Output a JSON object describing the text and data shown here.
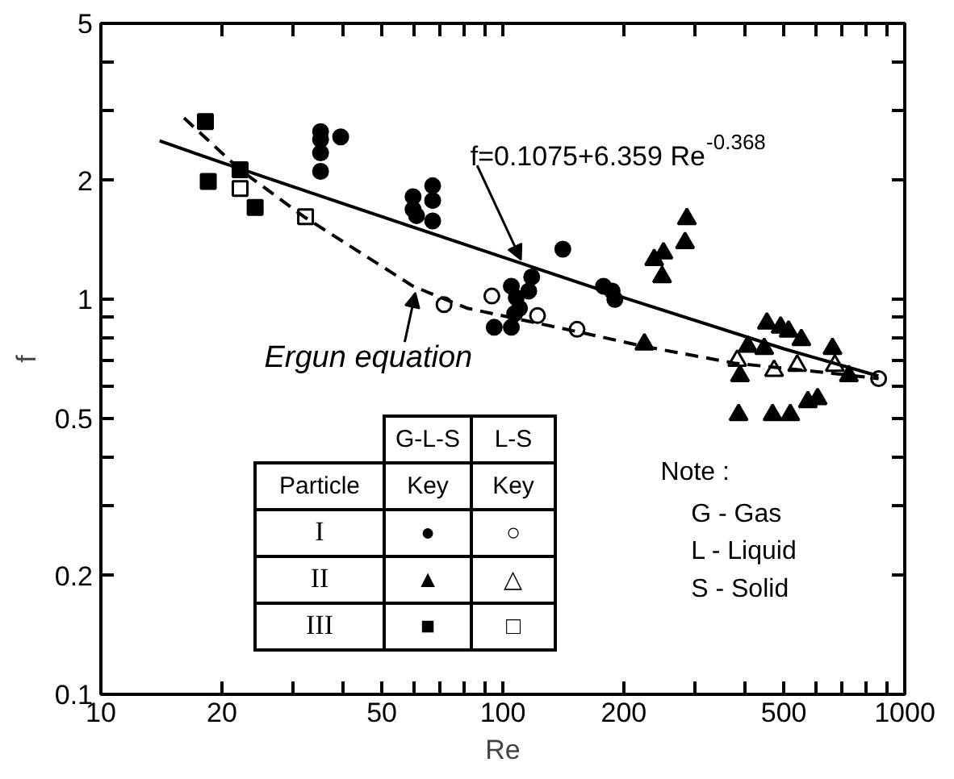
{
  "chart_data": {
    "type": "scatter",
    "xlabel": "Re",
    "ylabel": "f",
    "log": "xy",
    "grid": false,
    "xlim": [
      10,
      1000
    ],
    "ylim": [
      0.1,
      5
    ],
    "xticks": [
      10,
      20,
      {
        "value": 30,
        "label": null
      },
      {
        "value": 40,
        "label": null
      },
      50,
      {
        "value": 60,
        "label": null
      },
      {
        "value": 70,
        "label": null
      },
      {
        "value": 80,
        "label": null
      },
      {
        "value": 90,
        "label": null
      },
      100,
      200,
      {
        "value": 300,
        "label": null
      },
      {
        "value": 400,
        "label": null
      },
      500,
      {
        "value": 600,
        "label": null
      },
      {
        "value": 700,
        "label": null
      },
      {
        "value": 800,
        "label": null
      },
      {
        "value": 900,
        "label": null
      },
      1000
    ],
    "yticks": [
      0.1,
      0.2,
      {
        "value": 0.3,
        "label": null
      },
      {
        "value": 0.4,
        "label": null
      },
      0.5,
      {
        "value": 0.6,
        "label": null
      },
      {
        "value": 0.7,
        "label": null
      },
      {
        "value": 0.8,
        "label": null
      },
      {
        "value": 0.9,
        "label": null
      },
      1,
      2,
      {
        "value": 3,
        "label": null
      },
      {
        "value": 4,
        "label": null
      },
      5
    ],
    "series": [
      {
        "marker": "circle",
        "color": "#000000",
        "x": [
          35.2,
          35.2,
          35.2,
          35.2,
          39.5,
          66.9,
          59.8,
          66.9,
          59.8,
          61,
          66.9,
          141,
          105,
          118,
          116,
          108,
          110,
          105,
          95.2,
          107,
          178,
          187,
          190
        ],
        "values": [
          2.66,
          2.54,
          2.35,
          2.11,
          2.58,
          1.94,
          1.82,
          1.78,
          1.69,
          1.63,
          1.58,
          1.34,
          1.08,
          1.14,
          1.05,
          1.01,
          0.95,
          0.85,
          0.85,
          0.92,
          1.08,
          1.05,
          1.0
        ]
      },
      {
        "marker": "circle",
        "color": "#ffffff",
        "x": [
          71.4,
          93.9,
          122,
          153,
          861
        ],
        "values": [
          0.97,
          1.02,
          0.91,
          0.84,
          0.63
        ]
      },
      {
        "marker": "triangle",
        "color": "#000000",
        "x": [
          287,
          284,
          238,
          251,
          249,
          225,
          386,
          469,
          519,
          574,
          607,
          454,
          491,
          514,
          553,
          661,
          407,
          447,
          726,
          389
        ],
        "values": [
          1.6,
          1.39,
          1.26,
          1.31,
          1.14,
          0.77,
          0.51,
          0.51,
          0.51,
          0.55,
          0.56,
          0.87,
          0.85,
          0.83,
          0.79,
          0.75,
          0.76,
          0.75,
          0.64,
          0.64
        ]
      },
      {
        "marker": "triangle",
        "color": "#ffffff",
        "x": [
          383,
          473,
          540,
          670
        ],
        "values": [
          0.7,
          0.66,
          0.68,
          0.68
        ]
      },
      {
        "marker": "square",
        "color": "#000000",
        "x": [
          18.2,
          18.5,
          22.2,
          24.2
        ],
        "values": [
          2.82,
          1.99,
          2.13,
          1.71
        ]
      },
      {
        "marker": "square",
        "color": "#ffffff",
        "x": [
          22.2,
          32.3
        ],
        "values": [
          1.91,
          1.62
        ]
      },
      {
        "type": "line",
        "line_style": "solid",
        "marker": "none",
        "color": "#000000",
        "x": [
          14,
          20,
          30,
          50,
          100,
          200,
          500,
          860
        ],
        "values": [
          2.52,
          2.22,
          1.93,
          1.62,
          1.28,
          1.01,
          0.75,
          0.64
        ]
      },
      {
        "type": "line",
        "line_style": "dashed",
        "marker": "none",
        "color": "#000000",
        "x": [
          16.1,
          22.2,
          32,
          59.8,
          81.5,
          152,
          225,
          376,
          661,
          861
        ],
        "values": [
          2.88,
          2.13,
          1.62,
          1.08,
          0.95,
          0.83,
          0.76,
          0.69,
          0.65,
          0.63
        ]
      }
    ],
    "annotations": [
      {
        "text": "f=0.1075+6.359 Re$^{-0.368}$",
        "x": 111,
        "y": 1.26
      },
      {
        "text": "Ergun equation",
        "x": 60.6,
        "y": 1.04
      },
      "Note :",
      "G - Gas",
      "L - Liquid",
      "S - Solid",
      "Particle",
      "G-L-S",
      "L-S",
      "Key",
      "Key",
      "I",
      "II",
      "III",
      "●",
      "○",
      "▲",
      "△",
      "■",
      "□"
    ]
  }
}
